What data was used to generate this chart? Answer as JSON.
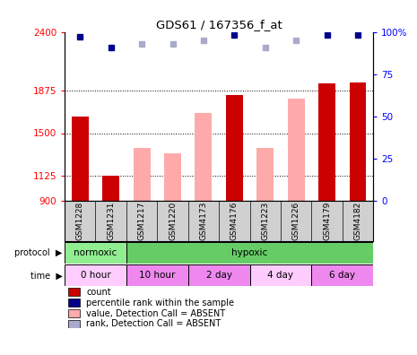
{
  "title": "GDS61 / 167356_f_at",
  "samples": [
    "GSM1228",
    "GSM1231",
    "GSM1217",
    "GSM1220",
    "GSM4173",
    "GSM4176",
    "GSM1223",
    "GSM1226",
    "GSM4179",
    "GSM4182"
  ],
  "count_values": [
    1650,
    1120,
    null,
    null,
    null,
    1840,
    null,
    null,
    1940,
    1950
  ],
  "absent_values": [
    null,
    null,
    1370,
    1320,
    1680,
    null,
    1370,
    1810,
    null,
    null
  ],
  "rank_present": [
    97,
    91,
    null,
    null,
    null,
    98,
    null,
    null,
    98,
    98
  ],
  "rank_absent": [
    null,
    null,
    93,
    93,
    95,
    null,
    91,
    95,
    null,
    null
  ],
  "ylim_left": [
    900,
    2400
  ],
  "ylim_right": [
    0,
    100
  ],
  "yticks_left": [
    900,
    1125,
    1500,
    1875,
    2400
  ],
  "yticks_right": [
    0,
    25,
    50,
    75,
    100
  ],
  "ytick_labels_left": [
    "900",
    "1125",
    "1500",
    "1875",
    "2400"
  ],
  "ytick_labels_right": [
    "0",
    "25",
    "50",
    "75",
    "100%"
  ],
  "hlines": [
    1125,
    1500,
    1875
  ],
  "protocol_groups": [
    {
      "label": "normoxic",
      "start": 0,
      "end": 2,
      "color": "#90ee90"
    },
    {
      "label": "hypoxic",
      "start": 2,
      "end": 10,
      "color": "#66cc66"
    }
  ],
  "time_groups": [
    {
      "label": "0 hour",
      "start": 0,
      "end": 2,
      "color": "#ffccff"
    },
    {
      "label": "10 hour",
      "start": 2,
      "end": 4,
      "color": "#ee88ee"
    },
    {
      "label": "2 day",
      "start": 4,
      "end": 6,
      "color": "#ee88ee"
    },
    {
      "label": "4 day",
      "start": 6,
      "end": 8,
      "color": "#ffccff"
    },
    {
      "label": "6 day",
      "start": 8,
      "end": 10,
      "color": "#ee88ee"
    }
  ],
  "count_color": "#cc0000",
  "absent_bar_color": "#ffaaaa",
  "rank_present_color": "#00008b",
  "rank_absent_color": "#aaaacc",
  "legend_items": [
    {
      "label": "count",
      "color": "#cc0000"
    },
    {
      "label": "percentile rank within the sample",
      "color": "#00008b"
    },
    {
      "label": "value, Detection Call = ABSENT",
      "color": "#ffaaaa"
    },
    {
      "label": "rank, Detection Call = ABSENT",
      "color": "#aaaacc"
    }
  ],
  "bg_color": "#ffffff"
}
